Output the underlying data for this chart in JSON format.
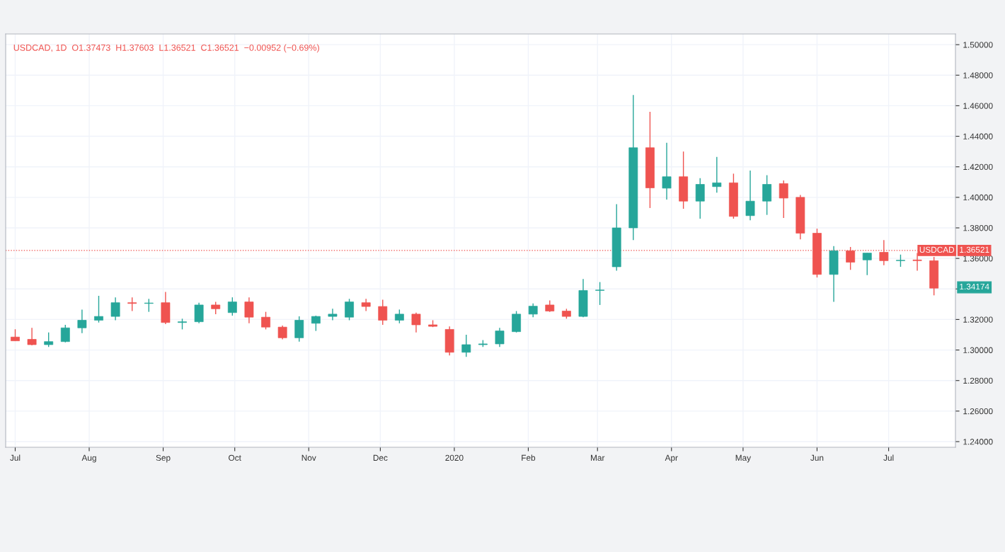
{
  "chart_data": {
    "type": "candlestick",
    "annotations": [
      "USDCAD, 1D  O1.37473  H1.37603  L1.36521  C1.36521  −0.00952 (−0.69%)",
      "1.34174",
      "1.36521"
    ],
    "x": [
      "2019-07-01",
      "2019-07-08",
      "2019-07-15",
      "2019-07-22",
      "2019-07-29",
      "2019-08-05",
      "2019-08-12",
      "2019-08-19",
      "2019-08-26",
      "2019-09-02",
      "2019-09-09",
      "2019-09-16",
      "2019-09-23",
      "2019-09-30",
      "2019-10-07",
      "2019-10-14",
      "2019-10-21",
      "2019-10-28",
      "2019-11-04",
      "2019-11-11",
      "2019-11-18",
      "2019-11-25",
      "2019-12-02",
      "2019-12-09",
      "2019-12-16",
      "2019-12-23",
      "2019-12-30",
      "2020-01-06",
      "2020-01-13",
      "2020-01-20",
      "2020-01-27",
      "2020-02-03",
      "2020-02-10",
      "2020-02-17",
      "2020-02-24",
      "2020-03-02",
      "2020-03-09",
      "2020-03-16",
      "2020-03-23",
      "2020-03-30",
      "2020-04-06",
      "2020-04-13",
      "2020-04-20",
      "2020-04-27",
      "2020-05-04",
      "2020-05-11",
      "2020-05-18",
      "2020-05-25",
      "2020-06-01",
      "2020-06-08",
      "2020-06-15",
      "2020-06-22",
      "2020-06-29",
      "2020-07-06",
      "2020-07-13",
      "2020-07-20"
    ],
    "ohlc": [
      [
        1.3085,
        1.3136,
        1.306,
        1.306
      ],
      [
        1.307,
        1.3145,
        1.303,
        1.3035
      ],
      [
        1.3035,
        1.3115,
        1.302,
        1.3055
      ],
      [
        1.3055,
        1.3165,
        1.305,
        1.3145
      ],
      [
        1.3145,
        1.3265,
        1.311,
        1.3195
      ],
      [
        1.3195,
        1.3355,
        1.318,
        1.322
      ],
      [
        1.322,
        1.3345,
        1.3195,
        1.331
      ],
      [
        1.331,
        1.3345,
        1.3255,
        1.3305
      ],
      [
        1.3305,
        1.3335,
        1.325,
        1.3305
      ],
      [
        1.331,
        1.338,
        1.317,
        1.318
      ],
      [
        1.318,
        1.3205,
        1.3135,
        1.3185
      ],
      [
        1.3185,
        1.331,
        1.3175,
        1.3295
      ],
      [
        1.3295,
        1.3315,
        1.3235,
        1.327
      ],
      [
        1.3245,
        1.3345,
        1.3225,
        1.3315
      ],
      [
        1.3315,
        1.3345,
        1.3175,
        1.3215
      ],
      [
        1.3215,
        1.325,
        1.3135,
        1.315
      ],
      [
        1.315,
        1.316,
        1.307,
        1.308
      ],
      [
        1.308,
        1.322,
        1.3055,
        1.3195
      ],
      [
        1.3175,
        1.3225,
        1.3125,
        1.322
      ],
      [
        1.322,
        1.327,
        1.3195,
        1.3235
      ],
      [
        1.3215,
        1.3335,
        1.3195,
        1.3315
      ],
      [
        1.331,
        1.3335,
        1.3255,
        1.3285
      ],
      [
        1.3285,
        1.333,
        1.3165,
        1.3195
      ],
      [
        1.3195,
        1.3265,
        1.3175,
        1.3235
      ],
      [
        1.3235,
        1.3245,
        1.3115,
        1.3165
      ],
      [
        1.3165,
        1.3195,
        1.315,
        1.3155
      ],
      [
        1.3135,
        1.3155,
        1.2965,
        1.2985
      ],
      [
        1.2985,
        1.31,
        1.2955,
        1.3035
      ],
      [
        1.3035,
        1.3065,
        1.302,
        1.304
      ],
      [
        1.304,
        1.3145,
        1.302,
        1.3125
      ],
      [
        1.312,
        1.3255,
        1.3115,
        1.3235
      ],
      [
        1.3235,
        1.3305,
        1.3215,
        1.3287
      ],
      [
        1.3295,
        1.3325,
        1.325,
        1.3255
      ],
      [
        1.3255,
        1.327,
        1.3205,
        1.322
      ],
      [
        1.322,
        1.3465,
        1.3215,
        1.339
      ],
      [
        1.339,
        1.3445,
        1.3295,
        1.3392
      ],
      [
        1.3545,
        1.3955,
        1.352,
        1.38
      ],
      [
        1.38,
        1.467,
        1.372,
        1.4325
      ],
      [
        1.4325,
        1.456,
        1.393,
        1.4062
      ],
      [
        1.406,
        1.4357,
        1.3985,
        1.4135
      ],
      [
        1.4135,
        1.43,
        1.3925,
        1.3975
      ],
      [
        1.3975,
        1.4125,
        1.386,
        1.4085
      ],
      [
        1.407,
        1.4265,
        1.403,
        1.4095
      ],
      [
        1.4095,
        1.4155,
        1.386,
        1.3875
      ],
      [
        1.388,
        1.4175,
        1.385,
        1.3975
      ],
      [
        1.3975,
        1.4145,
        1.3885,
        1.4085
      ],
      [
        1.409,
        1.411,
        1.3865,
        1.3995
      ],
      [
        1.4,
        1.4015,
        1.3725,
        1.3765
      ],
      [
        1.3765,
        1.3795,
        1.3475,
        1.3495
      ],
      [
        1.3495,
        1.3681,
        1.3315,
        1.365
      ],
      [
        1.365,
        1.3675,
        1.3525,
        1.3575
      ],
      [
        1.359,
        1.3635,
        1.349,
        1.3635
      ],
      [
        1.364,
        1.372,
        1.3555,
        1.3585
      ],
      [
        1.3585,
        1.3625,
        1.3545,
        1.3585
      ],
      [
        1.359,
        1.3635,
        1.352,
        1.3585
      ],
      [
        1.3585,
        1.361,
        1.3358,
        1.3405
      ]
    ],
    "xlim": [
      "2019-06-27",
      "2020-07-29"
    ],
    "xticks": [
      {
        "value": "2019-07-01",
        "label": "Jul"
      },
      {
        "value": "2019-08-01",
        "label": "Aug"
      },
      {
        "value": "2019-09-01",
        "label": "Sep"
      },
      {
        "value": "2019-10-01",
        "label": "Oct"
      },
      {
        "value": "2019-11-01",
        "label": "Nov"
      },
      {
        "value": "2019-12-01",
        "label": "Dec"
      },
      {
        "value": "2020-01-01",
        "label": "2020"
      },
      {
        "value": "2020-02-01",
        "label": "Feb"
      },
      {
        "value": "2020-03-01",
        "label": "Mar"
      },
      {
        "value": "2020-04-01",
        "label": "Apr"
      },
      {
        "value": "2020-05-01",
        "label": "May"
      },
      {
        "value": "2020-06-01",
        "label": "Jun"
      },
      {
        "value": "2020-07-01",
        "label": "Jul"
      }
    ],
    "ylim": [
      1.2363,
      1.507
    ],
    "yticks": [
      {
        "value": 1.24,
        "label": "1.24000"
      },
      {
        "value": 1.26,
        "label": "1.26000"
      },
      {
        "value": 1.28,
        "label": "1.28000"
      },
      {
        "value": 1.3,
        "label": "1.30000"
      },
      {
        "value": 1.32,
        "label": "1.32000"
      },
      {
        "value": 1.34,
        "label": null
      },
      {
        "value": 1.36,
        "label": "1.36000"
      },
      {
        "value": 1.38,
        "label": "1.38000"
      },
      {
        "value": 1.4,
        "label": "1.40000"
      },
      {
        "value": 1.42,
        "label": "1.42000"
      },
      {
        "value": 1.44,
        "label": "1.44000"
      },
      {
        "value": 1.46,
        "label": "1.46000"
      },
      {
        "value": 1.48,
        "label": "1.48000"
      },
      {
        "value": 1.5,
        "label": "1.50000"
      }
    ],
    "ref_lines": [
      {
        "axis": "y",
        "value": 1.36521,
        "label": "USDCAD",
        "color": "#ef5350",
        "line_style": "dotted"
      }
    ],
    "grid": true,
    "legend": false
  }
}
